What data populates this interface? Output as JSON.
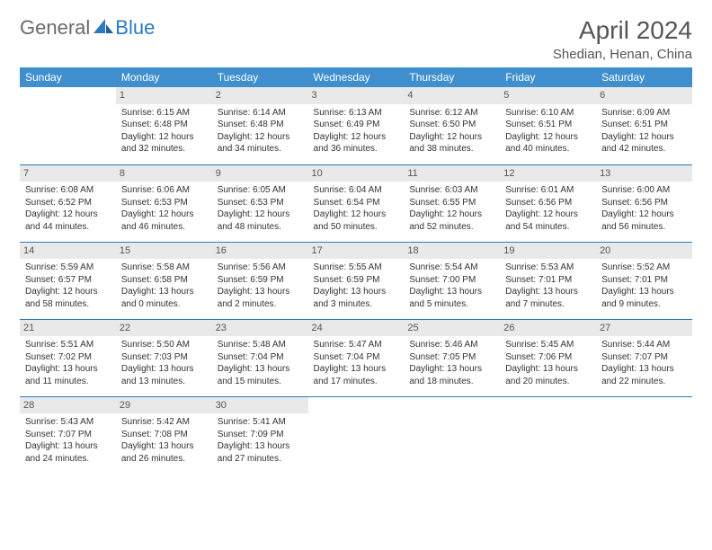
{
  "brand": {
    "part1": "General",
    "part2": "Blue"
  },
  "title": "April 2024",
  "location": "Shedian, Henan, China",
  "colors": {
    "header_bg": "#3f8fce",
    "header_fg": "#ffffff",
    "rule": "#2a7ac0",
    "daynum_bg": "#e9e9e9",
    "text": "#333333",
    "brand_gray": "#6a6a6a",
    "brand_blue": "#2a7ac0"
  },
  "dayNames": [
    "Sunday",
    "Monday",
    "Tuesday",
    "Wednesday",
    "Thursday",
    "Friday",
    "Saturday"
  ],
  "weeks": [
    [
      {
        "n": "",
        "lines": []
      },
      {
        "n": "1",
        "lines": [
          "Sunrise: 6:15 AM",
          "Sunset: 6:48 PM",
          "Daylight: 12 hours and 32 minutes."
        ]
      },
      {
        "n": "2",
        "lines": [
          "Sunrise: 6:14 AM",
          "Sunset: 6:48 PM",
          "Daylight: 12 hours and 34 minutes."
        ]
      },
      {
        "n": "3",
        "lines": [
          "Sunrise: 6:13 AM",
          "Sunset: 6:49 PM",
          "Daylight: 12 hours and 36 minutes."
        ]
      },
      {
        "n": "4",
        "lines": [
          "Sunrise: 6:12 AM",
          "Sunset: 6:50 PM",
          "Daylight: 12 hours and 38 minutes."
        ]
      },
      {
        "n": "5",
        "lines": [
          "Sunrise: 6:10 AM",
          "Sunset: 6:51 PM",
          "Daylight: 12 hours and 40 minutes."
        ]
      },
      {
        "n": "6",
        "lines": [
          "Sunrise: 6:09 AM",
          "Sunset: 6:51 PM",
          "Daylight: 12 hours and 42 minutes."
        ]
      }
    ],
    [
      {
        "n": "7",
        "lines": [
          "Sunrise: 6:08 AM",
          "Sunset: 6:52 PM",
          "Daylight: 12 hours and 44 minutes."
        ]
      },
      {
        "n": "8",
        "lines": [
          "Sunrise: 6:06 AM",
          "Sunset: 6:53 PM",
          "Daylight: 12 hours and 46 minutes."
        ]
      },
      {
        "n": "9",
        "lines": [
          "Sunrise: 6:05 AM",
          "Sunset: 6:53 PM",
          "Daylight: 12 hours and 48 minutes."
        ]
      },
      {
        "n": "10",
        "lines": [
          "Sunrise: 6:04 AM",
          "Sunset: 6:54 PM",
          "Daylight: 12 hours and 50 minutes."
        ]
      },
      {
        "n": "11",
        "lines": [
          "Sunrise: 6:03 AM",
          "Sunset: 6:55 PM",
          "Daylight: 12 hours and 52 minutes."
        ]
      },
      {
        "n": "12",
        "lines": [
          "Sunrise: 6:01 AM",
          "Sunset: 6:56 PM",
          "Daylight: 12 hours and 54 minutes."
        ]
      },
      {
        "n": "13",
        "lines": [
          "Sunrise: 6:00 AM",
          "Sunset: 6:56 PM",
          "Daylight: 12 hours and 56 minutes."
        ]
      }
    ],
    [
      {
        "n": "14",
        "lines": [
          "Sunrise: 5:59 AM",
          "Sunset: 6:57 PM",
          "Daylight: 12 hours and 58 minutes."
        ]
      },
      {
        "n": "15",
        "lines": [
          "Sunrise: 5:58 AM",
          "Sunset: 6:58 PM",
          "Daylight: 13 hours and 0 minutes."
        ]
      },
      {
        "n": "16",
        "lines": [
          "Sunrise: 5:56 AM",
          "Sunset: 6:59 PM",
          "Daylight: 13 hours and 2 minutes."
        ]
      },
      {
        "n": "17",
        "lines": [
          "Sunrise: 5:55 AM",
          "Sunset: 6:59 PM",
          "Daylight: 13 hours and 3 minutes."
        ]
      },
      {
        "n": "18",
        "lines": [
          "Sunrise: 5:54 AM",
          "Sunset: 7:00 PM",
          "Daylight: 13 hours and 5 minutes."
        ]
      },
      {
        "n": "19",
        "lines": [
          "Sunrise: 5:53 AM",
          "Sunset: 7:01 PM",
          "Daylight: 13 hours and 7 minutes."
        ]
      },
      {
        "n": "20",
        "lines": [
          "Sunrise: 5:52 AM",
          "Sunset: 7:01 PM",
          "Daylight: 13 hours and 9 minutes."
        ]
      }
    ],
    [
      {
        "n": "21",
        "lines": [
          "Sunrise: 5:51 AM",
          "Sunset: 7:02 PM",
          "Daylight: 13 hours and 11 minutes."
        ]
      },
      {
        "n": "22",
        "lines": [
          "Sunrise: 5:50 AM",
          "Sunset: 7:03 PM",
          "Daylight: 13 hours and 13 minutes."
        ]
      },
      {
        "n": "23",
        "lines": [
          "Sunrise: 5:48 AM",
          "Sunset: 7:04 PM",
          "Daylight: 13 hours and 15 minutes."
        ]
      },
      {
        "n": "24",
        "lines": [
          "Sunrise: 5:47 AM",
          "Sunset: 7:04 PM",
          "Daylight: 13 hours and 17 minutes."
        ]
      },
      {
        "n": "25",
        "lines": [
          "Sunrise: 5:46 AM",
          "Sunset: 7:05 PM",
          "Daylight: 13 hours and 18 minutes."
        ]
      },
      {
        "n": "26",
        "lines": [
          "Sunrise: 5:45 AM",
          "Sunset: 7:06 PM",
          "Daylight: 13 hours and 20 minutes."
        ]
      },
      {
        "n": "27",
        "lines": [
          "Sunrise: 5:44 AM",
          "Sunset: 7:07 PM",
          "Daylight: 13 hours and 22 minutes."
        ]
      }
    ],
    [
      {
        "n": "28",
        "lines": [
          "Sunrise: 5:43 AM",
          "Sunset: 7:07 PM",
          "Daylight: 13 hours and 24 minutes."
        ]
      },
      {
        "n": "29",
        "lines": [
          "Sunrise: 5:42 AM",
          "Sunset: 7:08 PM",
          "Daylight: 13 hours and 26 minutes."
        ]
      },
      {
        "n": "30",
        "lines": [
          "Sunrise: 5:41 AM",
          "Sunset: 7:09 PM",
          "Daylight: 13 hours and 27 minutes."
        ]
      },
      {
        "n": "",
        "lines": []
      },
      {
        "n": "",
        "lines": []
      },
      {
        "n": "",
        "lines": []
      },
      {
        "n": "",
        "lines": []
      }
    ]
  ]
}
